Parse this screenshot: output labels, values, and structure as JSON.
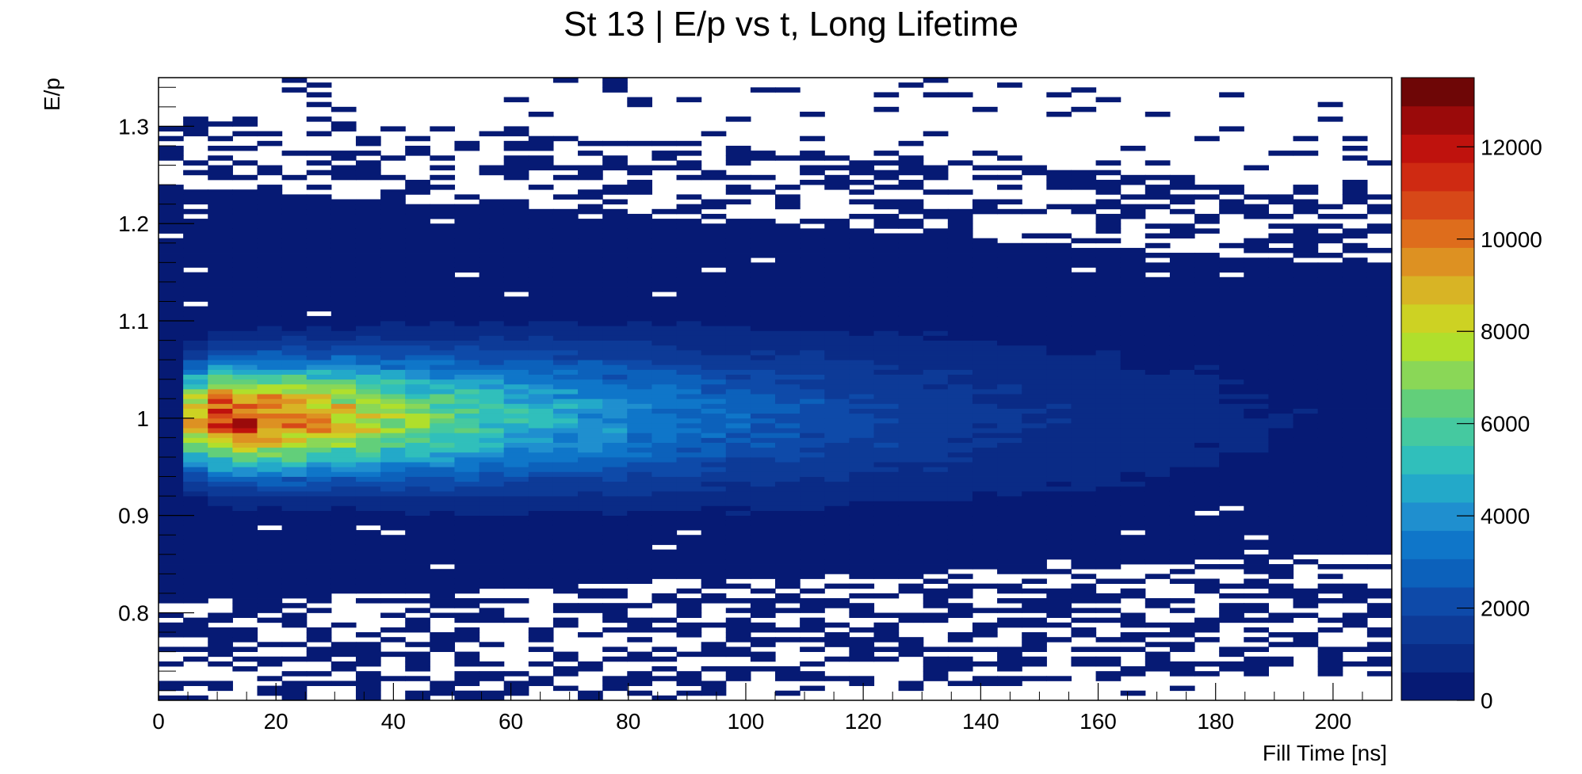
{
  "chart_data": {
    "type": "heatmap",
    "title": "St 13 | E/p vs t, Long Lifetime",
    "xlabel": "Fill Time [ns]",
    "ylabel": "E/p",
    "xlim": [
      0,
      210
    ],
    "ylim": [
      0.71,
      1.35
    ],
    "x_ticks": [
      0,
      20,
      40,
      60,
      80,
      100,
      120,
      140,
      160,
      180,
      200
    ],
    "x_tick_labels": [
      "0",
      "20",
      "40",
      "60",
      "80",
      "100",
      "120",
      "140",
      "160",
      "180",
      "200"
    ],
    "y_ticks": [
      0.8,
      0.9,
      1.0,
      1.1,
      1.2,
      1.3
    ],
    "y_tick_labels": [
      "0.8",
      "0.9",
      "1",
      "1.1",
      "1.2",
      "1.3"
    ],
    "colorbar": {
      "range": [
        0,
        13500
      ],
      "ticks": [
        0,
        2000,
        4000,
        6000,
        8000,
        10000,
        12000
      ],
      "tick_labels": [
        "0",
        "2000",
        "4000",
        "6000",
        "8000",
        "10000",
        "12000"
      ],
      "colors": [
        "#061a74",
        "#0a2b86",
        "#0d3a97",
        "#0e4aa9",
        "#0c61bb",
        "#0f76c9",
        "#1f8fcf",
        "#23a9c9",
        "#30bfbb",
        "#45c9a0",
        "#62cf7a",
        "#8ad757",
        "#b0df2c",
        "#cdd223",
        "#d8b425",
        "#dd9122",
        "#de6d1c",
        "#d74818",
        "#cf2a12",
        "#bf120d",
        "#9a0a0a",
        "#6e0606"
      ]
    },
    "grid": false,
    "cells": {
      "x_bin_width": 4.2,
      "y_bin_width": 0.005,
      "peak_counts": 13400,
      "peak_location": {
        "fill_time_ns": 15,
        "E_over_p": 1.0
      },
      "description_of_shape": "dense band centered at E/p = 1, narrowing in intensity with fill time; sparse outlier bins above 1.2 and below 0.85"
    }
  }
}
